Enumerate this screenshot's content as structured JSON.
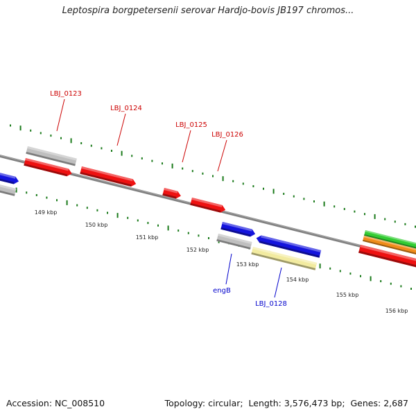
{
  "title": "Leptospira borgpetersenii serovar Hardjo-bovis JB197 chromos...",
  "footer": {
    "accession_label": "Accession:",
    "accession": "NC_008510",
    "topology_label": "Topology:",
    "topology": "circular",
    "length_label": "Length:",
    "length": "3,576,473 bp",
    "genes_label": "Genes:",
    "genes": "2,687"
  },
  "colors": {
    "backbone": "#808080",
    "tick": "#1a7a1a",
    "gene_red": "#ee1111",
    "gene_blue": "#1414dd",
    "gene_gray": "#bfbfbf",
    "gene_yellow": "#f2eba0",
    "gene_green": "#33cc33",
    "gene_orange": "#f08c1a",
    "label_red": "#cc0000",
    "label_blue": "#0000cc"
  },
  "scale_labels": [
    "149 kbp",
    "150 kbp",
    "151 kbp",
    "152 kbp",
    "153 kbp",
    "154 kbp",
    "155 kbp",
    "156 kbp"
  ],
  "gene_labels": [
    {
      "text": "LBJ_0123",
      "color": "red"
    },
    {
      "text": "LBJ_0124",
      "color": "red"
    },
    {
      "text": "LBJ_0125",
      "color": "red"
    },
    {
      "text": "LBJ_0126",
      "color": "red"
    },
    {
      "text": "engB",
      "color": "blue"
    },
    {
      "text": "LBJ_0128",
      "color": "blue"
    }
  ],
  "features": [
    {
      "name": "blue-left",
      "color": "blue"
    },
    {
      "name": "gray-left",
      "color": "gray"
    },
    {
      "name": "gray-0123",
      "color": "gray"
    },
    {
      "name": "red-0123",
      "color": "red"
    },
    {
      "name": "red-0124",
      "color": "red"
    },
    {
      "name": "red-0125",
      "color": "red"
    },
    {
      "name": "red-0126",
      "color": "red"
    },
    {
      "name": "blue-engB-top",
      "color": "blue"
    },
    {
      "name": "gray-engB",
      "color": "gray"
    },
    {
      "name": "blue-0128",
      "color": "blue"
    },
    {
      "name": "yellow-0128",
      "color": "yellow"
    },
    {
      "name": "green-right",
      "color": "green"
    },
    {
      "name": "orange-right",
      "color": "orange"
    },
    {
      "name": "red-right",
      "color": "red"
    }
  ]
}
